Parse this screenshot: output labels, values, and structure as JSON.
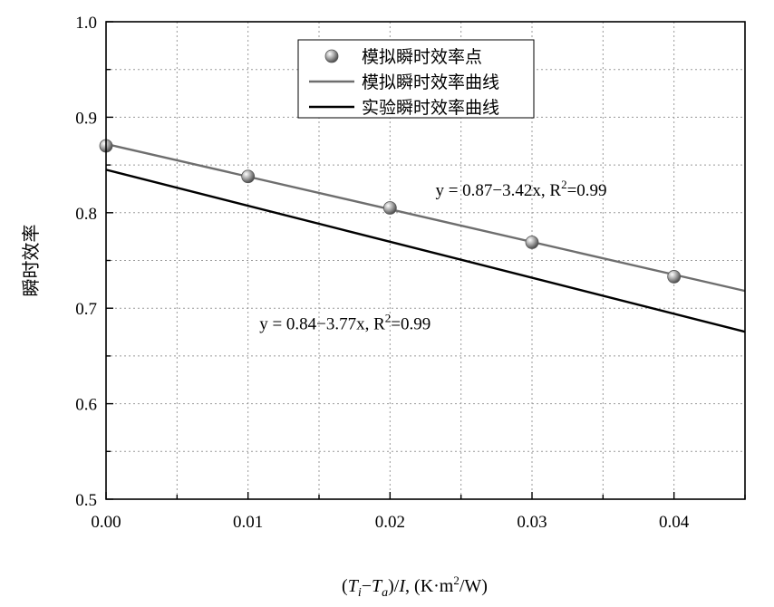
{
  "chart_data": {
    "type": "scatter",
    "title": "",
    "xlabel": {
      "parts": [
        {
          "text": "(",
          "style": "normal"
        },
        {
          "text": "T",
          "style": "italic"
        },
        {
          "text": "i",
          "style": "italic-sub"
        },
        {
          "text": "−",
          "style": "normal"
        },
        {
          "text": "T",
          "style": "italic"
        },
        {
          "text": "a",
          "style": "italic-sub"
        },
        {
          "text": ")/",
          "style": "normal"
        },
        {
          "text": "I",
          "style": "italic"
        },
        {
          "text": ", (K·m",
          "style": "normal"
        },
        {
          "text": "2",
          "style": "sup"
        },
        {
          "text": "/W)",
          "style": "normal"
        }
      ]
    },
    "ylabel": "瞬时效率",
    "xlim": [
      0,
      0.045
    ],
    "ylim": [
      0.5,
      1.0
    ],
    "xticks": [
      "0.00",
      "0.01",
      "0.02",
      "0.03",
      "0.04"
    ],
    "xtick_values": [
      0,
      0.01,
      0.02,
      0.03,
      0.04
    ],
    "yticks": [
      "0.5",
      "0.6",
      "0.7",
      "0.8",
      "0.9",
      "1.0"
    ],
    "ytick_values": [
      0.5,
      0.6,
      0.7,
      0.8,
      0.9,
      1.0
    ],
    "grid": true,
    "legend_position": "top-center",
    "series": [
      {
        "name": "模拟瞬时效率点",
        "type": "scatter",
        "color": "#8a8a8a",
        "x": [
          0.0,
          0.01,
          0.02,
          0.03,
          0.04
        ],
        "y": [
          0.87,
          0.838,
          0.805,
          0.769,
          0.733
        ]
      },
      {
        "name": "模拟瞬时效率曲线",
        "type": "line",
        "color": "#6e6e6e",
        "intercept": 0.872,
        "slope": -3.42,
        "x": [
          0.0,
          0.045
        ],
        "y": [
          0.872,
          0.718
        ]
      },
      {
        "name": "实验瞬时效率曲线",
        "type": "line",
        "color": "#000000",
        "intercept": 0.845,
        "slope": -3.77,
        "x": [
          0.0,
          0.045
        ],
        "y": [
          0.845,
          0.675
        ]
      }
    ],
    "annotations": [
      {
        "prefix": "y = 0.87−3.42x, R",
        "sup": "2",
        "suffix": "=0.99",
        "x": 0.0232,
        "y": 0.818
      },
      {
        "prefix": "y = 0.84−3.77x, R",
        "sup": "2",
        "suffix": "=0.99",
        "x": 0.0108,
        "y": 0.678
      }
    ]
  }
}
